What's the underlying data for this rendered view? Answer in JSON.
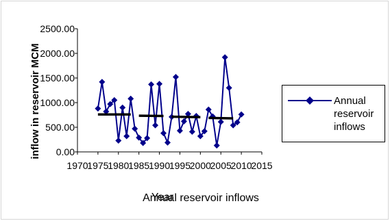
{
  "chart_data": {
    "type": "line",
    "title": "",
    "xlabel": "Year",
    "ylabel": "inflow in reservoir MCM",
    "caption": "Annual reservoir inflows",
    "xlim": [
      1970,
      2015
    ],
    "ylim": [
      0,
      2500
    ],
    "x_ticks": [
      "1970",
      "1975",
      "1980",
      "1985",
      "1990",
      "1995",
      "2000",
      "2005",
      "2010",
      "2015"
    ],
    "y_ticks": [
      "0.00",
      "500.00",
      "1000.00",
      "1500.00",
      "2000.00",
      "2500.00"
    ],
    "grid": false,
    "legend_position": "right",
    "colors": {
      "series": "#00008B",
      "trend": "#000000"
    },
    "series": [
      {
        "name": "Annual reservoir inflows",
        "marker": "diamond",
        "x": [
          1975,
          1976,
          1977,
          1978,
          1979,
          1980,
          1981,
          1982,
          1983,
          1984,
          1985,
          1986,
          1987,
          1988,
          1989,
          1990,
          1991,
          1992,
          1993,
          1994,
          1995,
          1996,
          1997,
          1998,
          1999,
          2000,
          2001,
          2002,
          2003,
          2004,
          2005,
          2006,
          2007,
          2008,
          2009,
          2010
        ],
        "values": [
          880,
          1420,
          820,
          970,
          1050,
          230,
          900,
          320,
          1080,
          470,
          290,
          180,
          280,
          1370,
          540,
          1380,
          380,
          190,
          710,
          1520,
          430,
          620,
          770,
          410,
          730,
          320,
          420,
          860,
          720,
          130,
          610,
          1920,
          1300,
          540,
          600,
          760
        ]
      },
      {
        "name": "",
        "role": "period-mean segments",
        "segments": [
          {
            "x": [
              1975,
              1983
            ],
            "y": [
              760,
              760
            ]
          },
          {
            "x": [
              1985,
              1991
            ],
            "y": [
              735,
              730
            ]
          },
          {
            "x": [
              1993,
              2000
            ],
            "y": [
              715,
              705
            ]
          },
          {
            "x": [
              2002,
              2008
            ],
            "y": [
              690,
              680
            ]
          }
        ]
      }
    ]
  }
}
